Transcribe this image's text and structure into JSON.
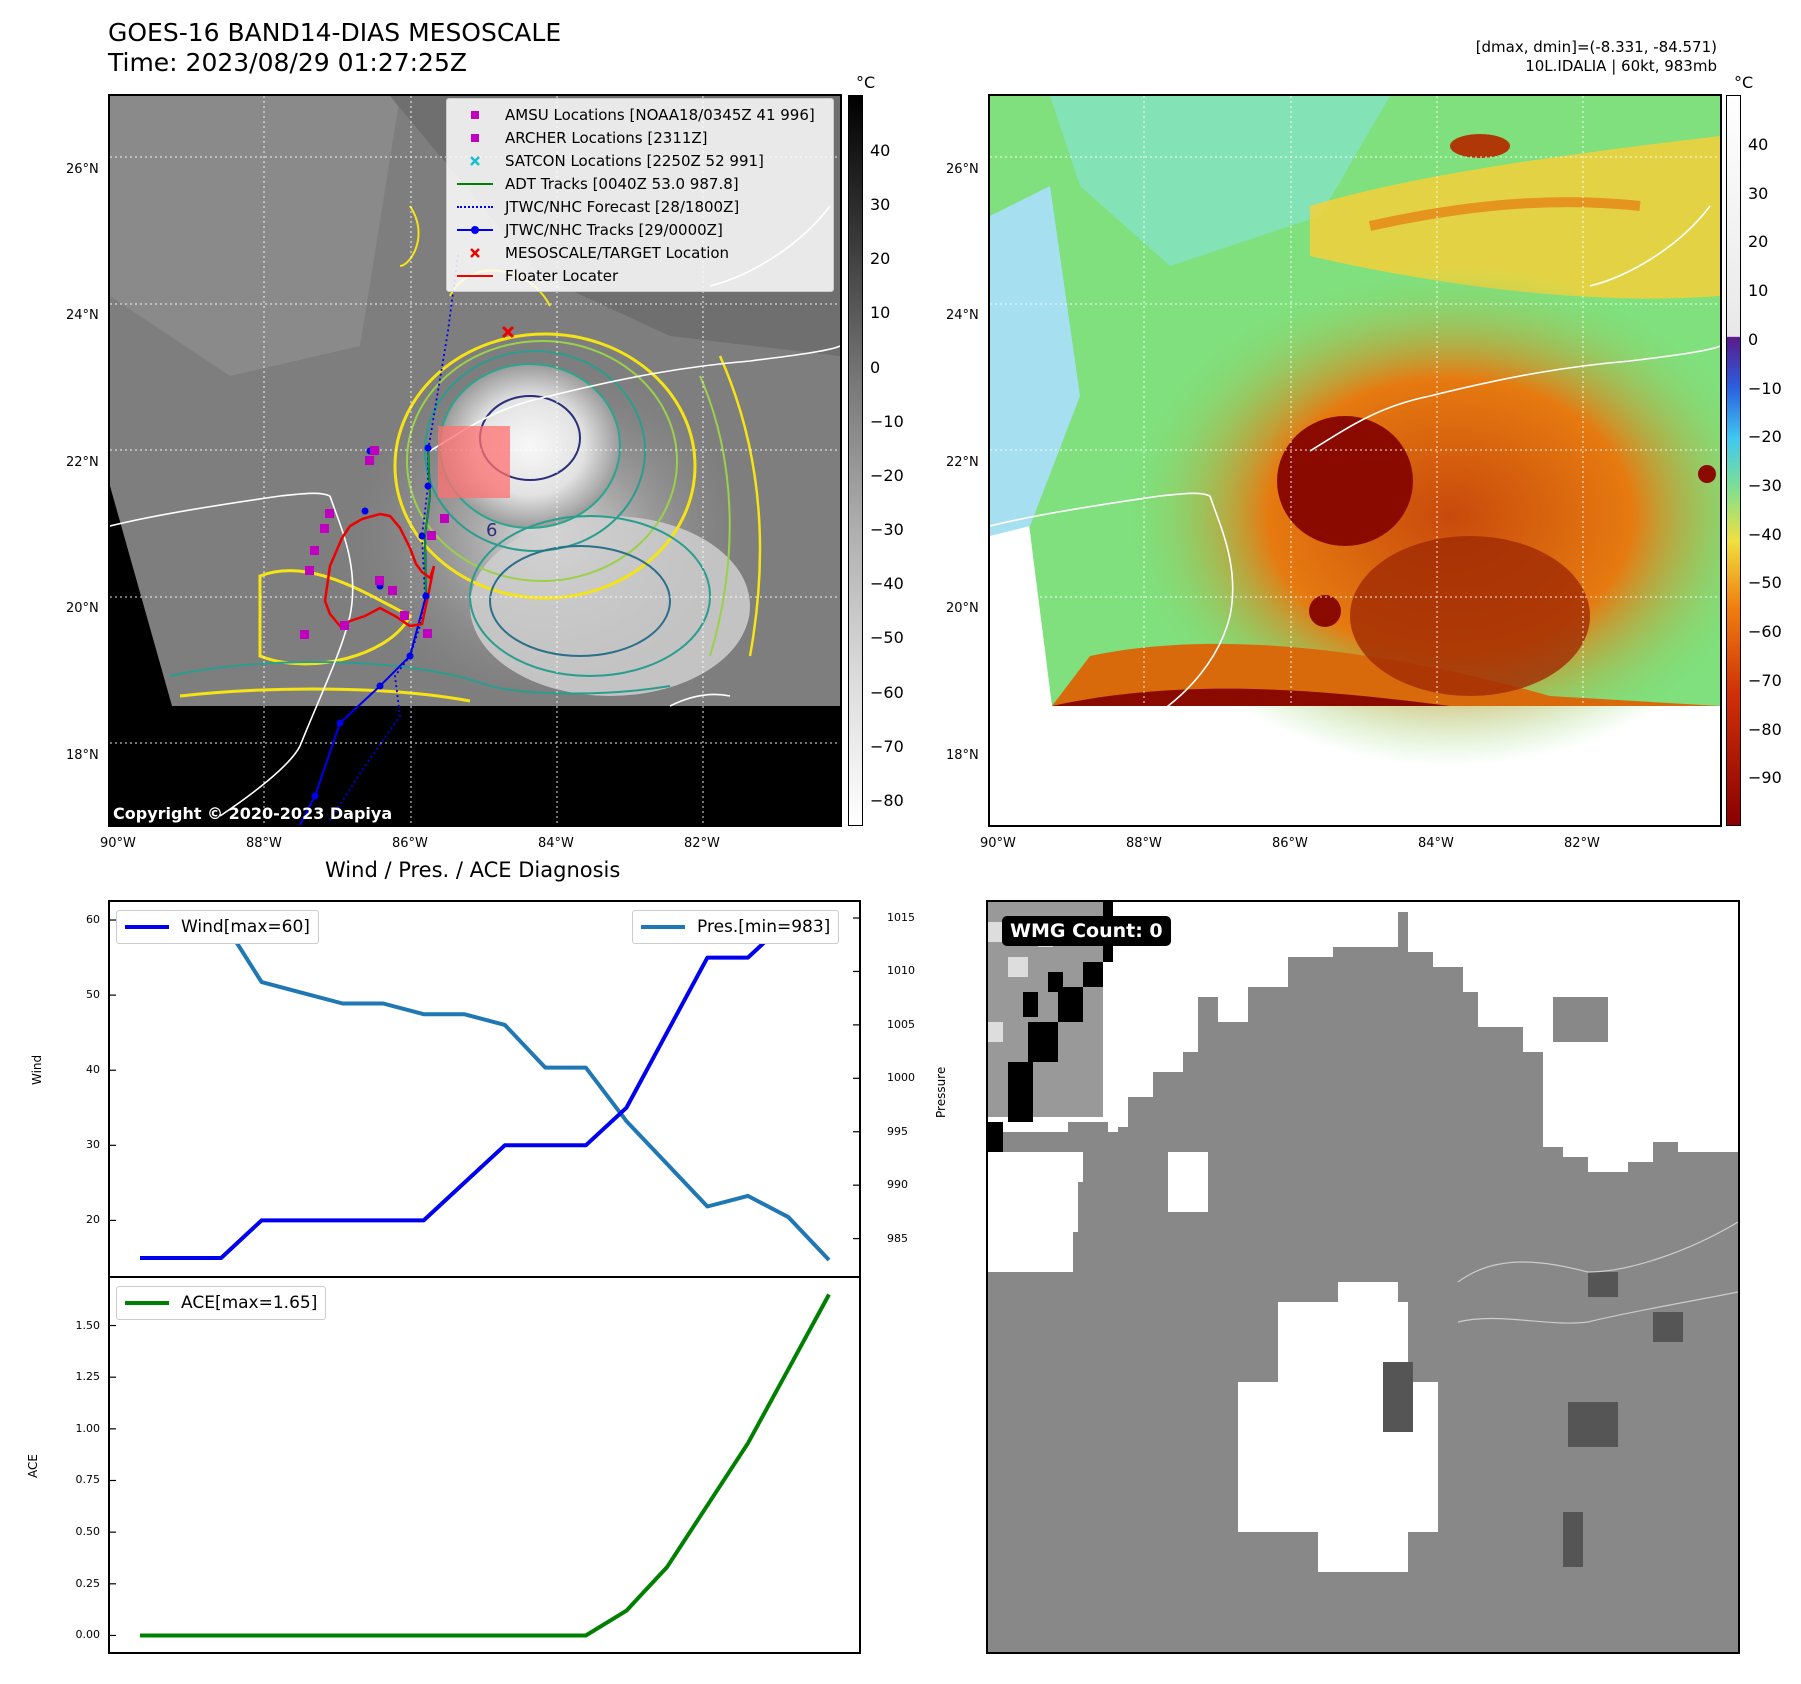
{
  "header": {
    "title_line1": "GOES-16 BAND14-DIAS MESOSCALE",
    "title_line2": "Time: 2023/08/29 01:27:25Z",
    "info_line1": "[dmax, dmin]=(-8.331, -84.571)",
    "info_line2": "10L.IDALIA | 60kt, 983mb"
  },
  "colors": {
    "wind": "#0000ee",
    "pressure": "#1f77b4",
    "ace": "#008000",
    "amsu": "#bf00bf",
    "archer": "#bf00bf",
    "satcon": "#17becf",
    "adt": "#008000",
    "forecast": "#0000ee",
    "tracks": "#0000ee",
    "target": "#ee0000",
    "floater": "#ee0000"
  },
  "map_axes": {
    "lat_labels": [
      "26°N",
      "24°N",
      "22°N",
      "20°N",
      "18°N"
    ],
    "lon_labels": [
      "90°W",
      "88°W",
      "86°W",
      "84°W",
      "82°W"
    ]
  },
  "colorbar_gray": {
    "unit": "°C",
    "ticks": [
      "40",
      "30",
      "20",
      "10",
      "0",
      "−10",
      "−20",
      "−30",
      "−40",
      "−50",
      "−60",
      "−70",
      "−80"
    ]
  },
  "colorbar_color": {
    "unit": "°C",
    "ticks": [
      "40",
      "30",
      "20",
      "10",
      "0",
      "−10",
      "−20",
      "−30",
      "−40",
      "−50",
      "−60",
      "−70",
      "−80",
      "−90"
    ]
  },
  "legend": {
    "items": [
      {
        "label": "AMSU Locations [NOAA18/0345Z 41 996]",
        "symbol": "square-amsu-icon"
      },
      {
        "label": "ARCHER Locations [2311Z]",
        "symbol": "square-archer-icon"
      },
      {
        "label": "SATCON Locations [2250Z 52 991]",
        "symbol": "x-satcon-icon"
      },
      {
        "label": "ADT Tracks [0040Z 53.0 987.8]",
        "symbol": "line-adt-icon"
      },
      {
        "label": "JTWC/NHC Forecast [28/1800Z]",
        "symbol": "dotted-forecast-icon"
      },
      {
        "label": "JTWC/NHC Tracks [29/0000Z]",
        "symbol": "line-dot-tracks-icon"
      },
      {
        "label": "MESOSCALE/TARGET Location",
        "symbol": "x-target-icon"
      },
      {
        "label": "Floater Locater",
        "symbol": "line-floater-icon"
      }
    ]
  },
  "copyright": "Copyright © 2020-2023 Dapiya",
  "wmg_badge": "WMG Count: 0",
  "contour_label": "6",
  "chart_data": [
    {
      "type": "line",
      "title": "Wind / Pres. / ACE Diagnosis",
      "ylabel": "Wind",
      "ylabel_right": "Pressure",
      "ylim": [
        12.6,
        62.4
      ],
      "ylim_right": [
        981.5,
        1016.5
      ],
      "y_ticks": [
        20,
        30,
        40,
        50,
        60
      ],
      "y_ticks_right": [
        985,
        990,
        995,
        1000,
        1005,
        1010,
        1015
      ],
      "series": [
        {
          "name": "Wind[max=60]",
          "axis": "left",
          "x": [
            0,
            1,
            2,
            3,
            4,
            5,
            6,
            7,
            8,
            9,
            10,
            11,
            12,
            13,
            14,
            15,
            16,
            17
          ],
          "values": [
            15,
            15,
            15,
            20,
            20,
            20,
            20,
            20,
            25,
            30,
            30,
            30,
            35,
            45,
            55,
            55,
            60,
            60
          ]
        },
        {
          "name": "Pres.[min=983]",
          "axis": "right",
          "x": [
            0,
            1,
            2,
            3,
            4,
            5,
            6,
            7,
            8,
            9,
            10,
            11,
            12,
            13,
            14,
            15,
            16,
            17
          ],
          "values": [
            1015,
            1015,
            1015,
            1009,
            1008,
            1007,
            1007,
            1006,
            1006,
            1005,
            1001,
            1001,
            996,
            992,
            988,
            989,
            987,
            983
          ]
        }
      ]
    },
    {
      "type": "line",
      "ylabel": "ACE",
      "ylim": [
        -0.08,
        1.73
      ],
      "y_ticks": [
        "0.00",
        "0.25",
        "0.50",
        "0.75",
        "1.00",
        "1.25",
        "1.50"
      ],
      "series": [
        {
          "name": "ACE[max=1.65]",
          "x": [
            0,
            1,
            2,
            3,
            4,
            5,
            6,
            7,
            8,
            9,
            10,
            11,
            12,
            13,
            14,
            15,
            16,
            17
          ],
          "values": [
            0,
            0,
            0,
            0,
            0,
            0,
            0,
            0,
            0,
            0,
            0,
            0,
            0.12,
            0.33,
            0.63,
            0.93,
            1.29,
            1.65
          ]
        }
      ]
    }
  ]
}
